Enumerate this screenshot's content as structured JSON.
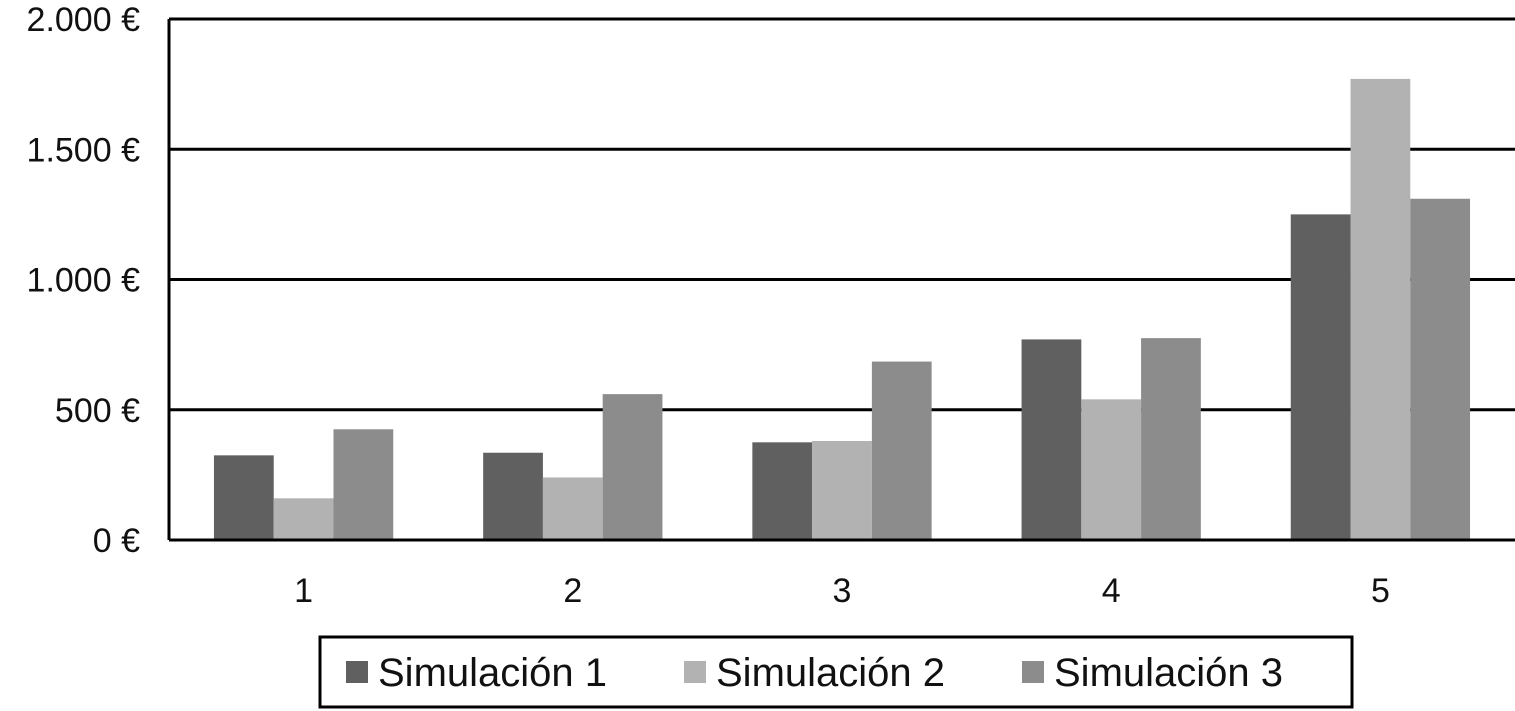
{
  "chart_data": {
    "type": "bar",
    "title": "",
    "xlabel": "",
    "ylabel": "",
    "categories": [
      "1",
      "2",
      "3",
      "4",
      "5"
    ],
    "series": [
      {
        "name": "Simulación 1",
        "color": "#606060",
        "values": [
          325,
          335,
          375,
          770,
          1250
        ]
      },
      {
        "name": "Simulación 2",
        "color": "#b2b2b2",
        "values": [
          160,
          240,
          380,
          540,
          1770
        ]
      },
      {
        "name": "Simulación 3",
        "color": "#8c8c8c",
        "values": [
          425,
          560,
          685,
          775,
          1310
        ]
      }
    ],
    "ylim": [
      0,
      2000
    ],
    "yticks": [
      0,
      500,
      1000,
      1500,
      2000
    ],
    "ytick_labels": [
      "0 €",
      "500 €",
      "1.000 €",
      "1.500 €",
      "2.000 €"
    ],
    "grid": true,
    "legend_position": "bottom"
  }
}
